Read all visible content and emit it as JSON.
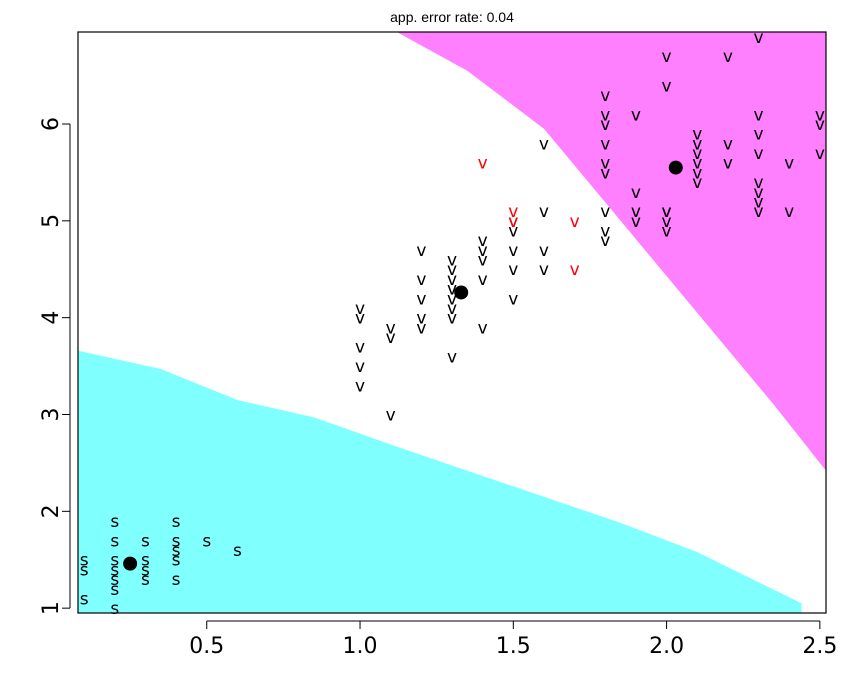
{
  "chart_data": {
    "type": "scatter",
    "title": "app. error rate: 0.04",
    "xlabel": "",
    "ylabel": "",
    "xlim": [
      0.08,
      2.52
    ],
    "ylim": [
      0.95,
      6.95
    ],
    "x_ticks": [
      "0.5",
      "1.0",
      "1.5",
      "2.0",
      "2.5"
    ],
    "y_ticks": [
      "1",
      "2",
      "3",
      "4",
      "5",
      "6"
    ],
    "regions": [
      {
        "name": "cyan",
        "color": "#80ffff",
        "points": [
          [
            0.08,
            3.66
          ],
          [
            0.35,
            3.47
          ],
          [
            0.6,
            3.15
          ],
          [
            0.85,
            2.97
          ],
          [
            1.1,
            2.69
          ],
          [
            1.35,
            2.42
          ],
          [
            1.6,
            2.15
          ],
          [
            1.85,
            1.88
          ],
          [
            2.1,
            1.58
          ],
          [
            2.44,
            1.05
          ],
          [
            2.44,
            0.95
          ],
          [
            0.08,
            0.95
          ]
        ]
      },
      {
        "name": "magenta",
        "color": "#ff80ff",
        "points": [
          [
            1.12,
            6.95
          ],
          [
            1.35,
            6.55
          ],
          [
            1.6,
            5.95
          ],
          [
            1.85,
            5.0
          ],
          [
            2.1,
            4.05
          ],
          [
            2.35,
            3.1
          ],
          [
            2.52,
            2.42
          ],
          [
            2.52,
            6.95
          ]
        ]
      }
    ],
    "series": [
      {
        "label": "s",
        "color": "#000000",
        "points": [
          [
            0.1,
            1.4
          ],
          [
            0.1,
            1.5
          ],
          [
            0.1,
            1.1
          ],
          [
            0.2,
            1.9
          ],
          [
            0.2,
            1.7
          ],
          [
            0.2,
            1.5
          ],
          [
            0.2,
            1.4
          ],
          [
            0.2,
            1.3
          ],
          [
            0.2,
            1.2
          ],
          [
            0.2,
            1.0
          ],
          [
            0.3,
            1.7
          ],
          [
            0.3,
            1.5
          ],
          [
            0.3,
            1.4
          ],
          [
            0.3,
            1.3
          ],
          [
            0.4,
            1.9
          ],
          [
            0.4,
            1.7
          ],
          [
            0.4,
            1.6
          ],
          [
            0.4,
            1.5
          ],
          [
            0.4,
            1.3
          ],
          [
            0.5,
            1.7
          ],
          [
            0.6,
            1.6
          ]
        ]
      },
      {
        "label": "v",
        "color": "#000000",
        "points": [
          [
            1.0,
            4.1
          ],
          [
            1.0,
            4.0
          ],
          [
            1.0,
            3.7
          ],
          [
            1.0,
            3.5
          ],
          [
            1.0,
            3.3
          ],
          [
            1.1,
            3.9
          ],
          [
            1.1,
            3.8
          ],
          [
            1.1,
            3.0
          ],
          [
            1.2,
            4.7
          ],
          [
            1.2,
            4.4
          ],
          [
            1.2,
            4.2
          ],
          [
            1.2,
            4.0
          ],
          [
            1.2,
            3.9
          ],
          [
            1.3,
            4.6
          ],
          [
            1.3,
            4.5
          ],
          [
            1.3,
            4.4
          ],
          [
            1.3,
            4.3
          ],
          [
            1.3,
            4.2
          ],
          [
            1.3,
            4.1
          ],
          [
            1.3,
            4.0
          ],
          [
            1.3,
            3.6
          ],
          [
            1.4,
            4.8
          ],
          [
            1.4,
            4.7
          ],
          [
            1.4,
            4.6
          ],
          [
            1.4,
            4.4
          ],
          [
            1.4,
            3.9
          ],
          [
            1.5,
            5.0
          ],
          [
            1.5,
            4.9
          ],
          [
            1.5,
            4.7
          ],
          [
            1.5,
            4.5
          ],
          [
            1.5,
            4.2
          ],
          [
            1.6,
            5.8
          ],
          [
            1.6,
            5.1
          ],
          [
            1.6,
            4.7
          ],
          [
            1.6,
            4.5
          ],
          [
            1.8,
            6.3
          ],
          [
            1.8,
            6.1
          ],
          [
            1.8,
            6.0
          ],
          [
            1.8,
            5.8
          ],
          [
            1.8,
            5.6
          ],
          [
            1.8,
            5.5
          ],
          [
            1.8,
            5.1
          ],
          [
            1.8,
            4.9
          ],
          [
            1.8,
            4.8
          ],
          [
            1.9,
            6.1
          ],
          [
            1.9,
            5.3
          ],
          [
            1.9,
            5.1
          ],
          [
            1.9,
            5.0
          ],
          [
            2.0,
            6.7
          ],
          [
            2.0,
            6.4
          ],
          [
            2.0,
            5.1
          ],
          [
            2.0,
            5.0
          ],
          [
            2.0,
            4.9
          ],
          [
            2.1,
            5.9
          ],
          [
            2.1,
            5.7
          ],
          [
            2.1,
            5.6
          ],
          [
            2.1,
            5.5
          ],
          [
            2.1,
            5.4
          ],
          [
            2.2,
            6.7
          ],
          [
            2.2,
            5.8
          ],
          [
            2.2,
            5.6
          ],
          [
            2.3,
            6.9
          ],
          [
            2.3,
            6.1
          ],
          [
            2.3,
            5.9
          ],
          [
            2.3,
            5.7
          ],
          [
            2.3,
            5.4
          ],
          [
            2.3,
            5.3
          ],
          [
            2.3,
            5.2
          ],
          [
            2.3,
            5.1
          ],
          [
            2.4,
            5.6
          ],
          [
            2.4,
            5.1
          ],
          [
            2.5,
            6.1
          ],
          [
            2.5,
            6.0
          ],
          [
            2.5,
            5.7
          ],
          [
            2.0,
            5.1
          ],
          [
            2.1,
            5.8
          ]
        ]
      },
      {
        "label": "v",
        "color": "#ff0000",
        "points": [
          [
            1.4,
            5.6
          ],
          [
            1.5,
            5.1
          ],
          [
            1.5,
            5.0
          ],
          [
            1.7,
            5.0
          ],
          [
            1.7,
            4.5
          ]
        ]
      }
    ],
    "centroids": [
      [
        0.25,
        1.46
      ],
      [
        1.33,
        4.26
      ],
      [
        2.03,
        5.55
      ]
    ]
  }
}
